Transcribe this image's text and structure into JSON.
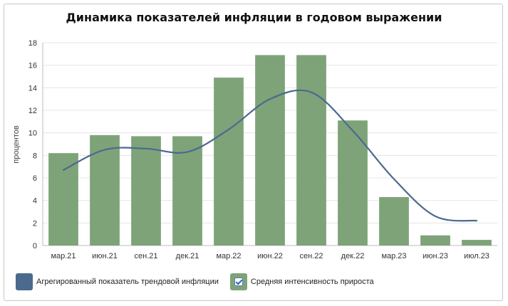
{
  "chart_data": {
    "type": "bar",
    "title": "Динамика показателей инфляции в годовом выражении",
    "ylabel": "процентов",
    "xlabel": "",
    "ylim": [
      0,
      18
    ],
    "yticks": [
      0,
      2,
      4,
      6,
      8,
      10,
      12,
      14,
      16,
      18
    ],
    "categories": [
      "мар.21",
      "июн.21",
      "сен.21",
      "дек.21",
      "мар.22",
      "июн.22",
      "сен.22",
      "дек.22",
      "мар.23",
      "июн.23",
      "июл.23"
    ],
    "grid": true,
    "legend_position": "bottom-left",
    "series": [
      {
        "name": "Агрегированный показатель трендовой инфляции",
        "type": "line",
        "color": "#4b6a8e",
        "values": [
          6.7,
          8.5,
          8.6,
          8.3,
          10.3,
          13.0,
          13.6,
          10.2,
          5.9,
          2.6,
          2.2
        ]
      },
      {
        "name": "Средняя интенсивность прироста",
        "type": "bar",
        "color": "#7ea379",
        "values": [
          8.2,
          9.8,
          9.7,
          9.7,
          14.9,
          16.9,
          16.9,
          11.1,
          4.3,
          0.9,
          0.5
        ]
      }
    ]
  }
}
